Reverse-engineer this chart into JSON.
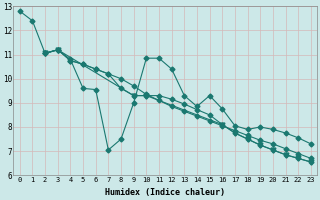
{
  "xlabel": "Humidex (Indice chaleur)",
  "bg_color": "#cce8e8",
  "grid_color": "#b8d8d8",
  "line_color": "#1a7870",
  "xlim": [
    -0.5,
    23.5
  ],
  "ylim": [
    6,
    13
  ],
  "xticks": [
    0,
    1,
    2,
    3,
    4,
    5,
    6,
    7,
    8,
    9,
    10,
    11,
    12,
    13,
    14,
    15,
    16,
    17,
    18,
    19,
    20,
    21,
    22,
    23
  ],
  "yticks": [
    6,
    7,
    8,
    9,
    10,
    11,
    12,
    13
  ],
  "series": [
    {
      "x": [
        0,
        1,
        2,
        3,
        4,
        5,
        6,
        7,
        8,
        9,
        10,
        11,
        12,
        13,
        14,
        15,
        16,
        17,
        18,
        19,
        20,
        21,
        22,
        23
      ],
      "y": [
        12.8,
        12.4,
        11.05,
        11.2,
        10.8,
        9.6,
        9.55,
        7.05,
        7.5,
        9.0,
        10.85,
        10.85,
        10.4,
        9.3,
        8.85,
        9.3,
        8.75,
        8.05,
        7.9,
        8.0,
        7.9,
        7.75,
        7.55,
        7.3
      ],
      "marker": "D"
    },
    {
      "x": [
        2,
        3,
        4,
        5,
        6,
        7,
        8,
        9,
        10,
        11,
        12,
        13,
        14,
        15,
        16,
        17,
        18,
        19,
        20,
        21,
        22,
        23
      ],
      "y": [
        11.05,
        11.2,
        10.75,
        10.6,
        10.4,
        10.2,
        10.0,
        9.7,
        9.35,
        9.1,
        8.85,
        8.65,
        8.45,
        8.25,
        8.05,
        7.85,
        7.65,
        7.45,
        7.3,
        7.1,
        6.9,
        6.7
      ],
      "marker": "D"
    },
    {
      "x": [
        2,
        3,
        4,
        5,
        6,
        7,
        8,
        9,
        10,
        11,
        12,
        13,
        14,
        15,
        16,
        17,
        18,
        19,
        20,
        21,
        22,
        23
      ],
      "y": [
        11.05,
        11.2,
        10.75,
        10.6,
        10.4,
        10.2,
        9.6,
        9.3,
        9.3,
        9.3,
        9.15,
        8.95,
        8.72,
        8.5,
        8.1,
        7.75,
        7.5,
        7.25,
        7.05,
        6.85,
        6.7,
        6.55
      ],
      "marker": "D"
    },
    {
      "x": [
        2,
        3,
        9,
        10,
        16,
        17,
        18,
        19,
        20,
        21,
        22,
        23
      ],
      "y": [
        11.05,
        11.2,
        9.3,
        9.3,
        8.1,
        7.75,
        7.5,
        7.25,
        7.05,
        6.85,
        6.7,
        6.55
      ],
      "marker": "v"
    }
  ]
}
